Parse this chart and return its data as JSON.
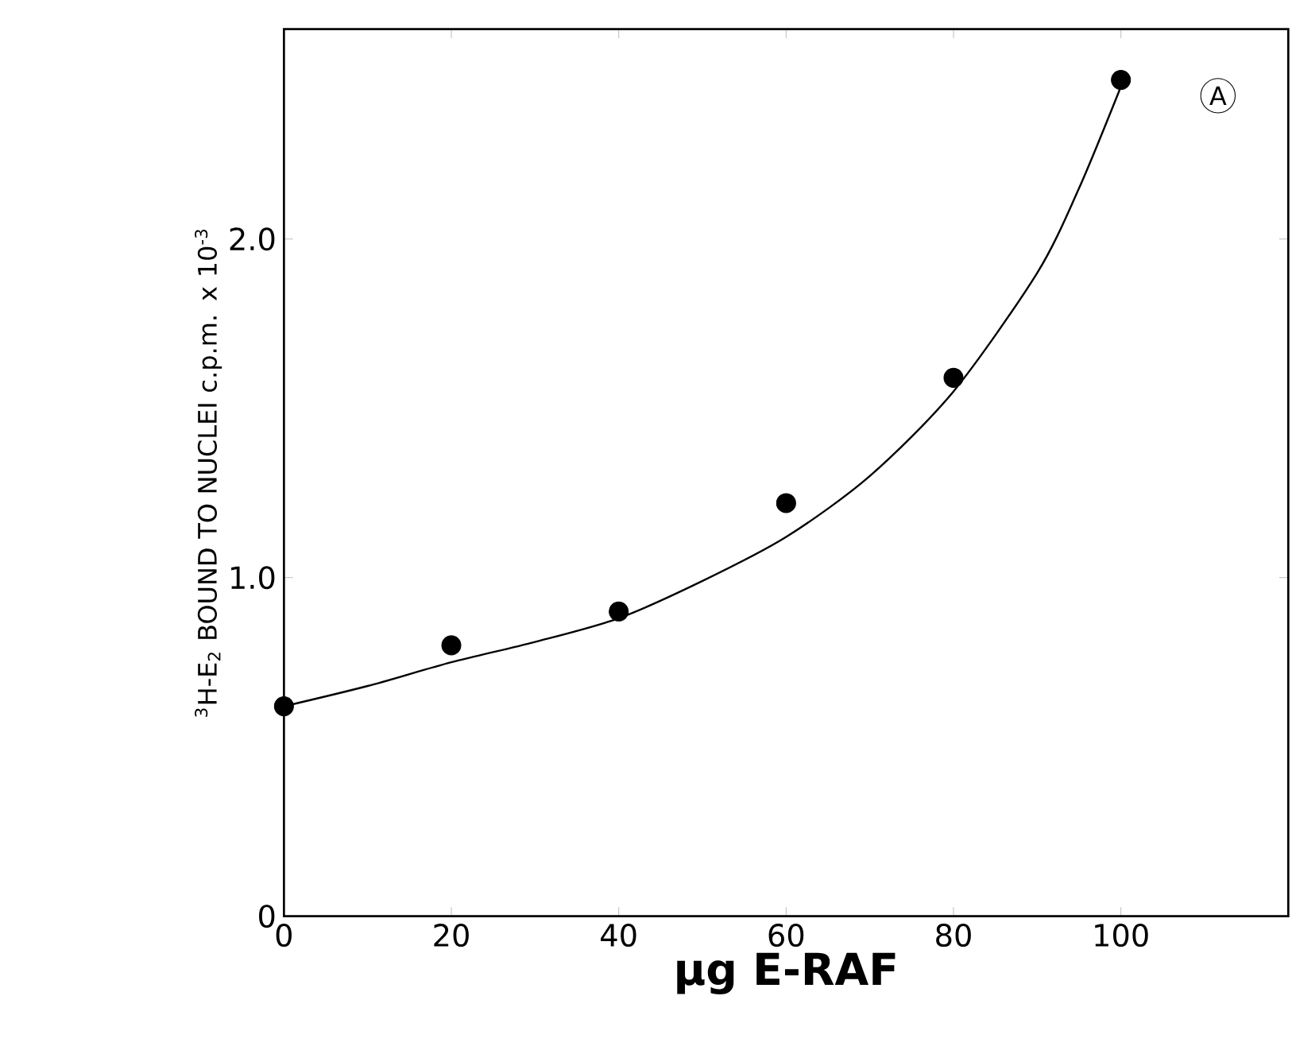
{
  "chart_data": {
    "type": "scatter",
    "xlabel": "µg E-RAF",
    "ylabel": "$^{3}$H-E$_{2}$ BOUND TO NUCLEI c.p.m. x 10$^{-3}$",
    "annotations": [
      "A"
    ],
    "xlim": [
      0,
      120
    ],
    "ylim": [
      0,
      2.62
    ],
    "xticks": [
      0,
      20,
      40,
      60,
      80,
      100
    ],
    "yticks": [
      0,
      {
        "value": 1,
        "label": "1.0"
      },
      {
        "value": 2,
        "label": "2.0"
      }
    ],
    "series": [
      {
        "color": "#000000",
        "marker": "circle",
        "x": [
          0,
          20,
          40,
          60,
          80,
          100
        ],
        "values": [
          0.62,
          0.8,
          0.9,
          1.22,
          1.59,
          2.47
        ]
      },
      {
        "type": "line",
        "color": "#000000",
        "marker": "none",
        "line_style": "solid",
        "x": [
          0,
          10,
          20,
          30,
          40,
          50,
          60,
          70,
          80,
          90,
          95,
          100
        ],
        "values": [
          0.62,
          0.68,
          0.75,
          0.81,
          0.88,
          0.99,
          1.12,
          1.3,
          1.55,
          1.9,
          2.15,
          2.45
        ]
      }
    ]
  }
}
